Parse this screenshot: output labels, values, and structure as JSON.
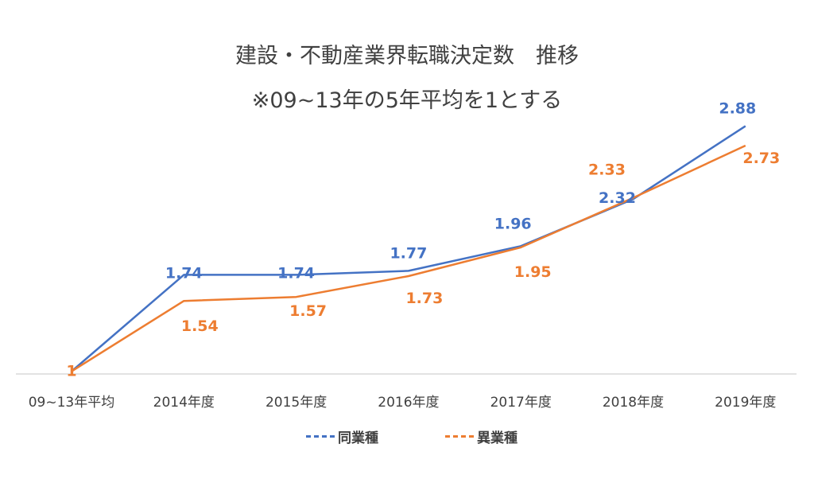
{
  "title": "建設・不動産業界転職決定数　推移",
  "subtitle": "※09~13年の5年平均を1とする",
  "colors": {
    "same": "#4472C4",
    "different": "#ED7D31",
    "axis": "#D9D9D9",
    "tick_text": "#404040"
  },
  "legend": {
    "same": "同業種",
    "different": "異業種"
  },
  "chart_data": {
    "type": "line",
    "title": "建設・不動産業界転職決定数　推移",
    "subtitle": "※09~13年の5年平均を1とする",
    "categories": [
      "09~13年平均",
      "2014年度",
      "2015年度",
      "2016年度",
      "2017年度",
      "2018年度",
      "2019年度"
    ],
    "series": [
      {
        "name": "同業種",
        "values": [
          1,
          1.74,
          1.74,
          1.77,
          1.96,
          2.32,
          2.88
        ],
        "labels": [
          "",
          "1.74",
          "1.74",
          "1.77",
          "1.96",
          "2.32",
          "2.88"
        ]
      },
      {
        "name": "異業種",
        "values": [
          1,
          1.54,
          1.57,
          1.73,
          1.95,
          2.33,
          2.73
        ],
        "labels": [
          "1",
          "1.54",
          "1.57",
          "1.73",
          "1.95",
          "2.33",
          "2.73"
        ]
      }
    ],
    "legend_position": "bottom",
    "grid": false
  }
}
